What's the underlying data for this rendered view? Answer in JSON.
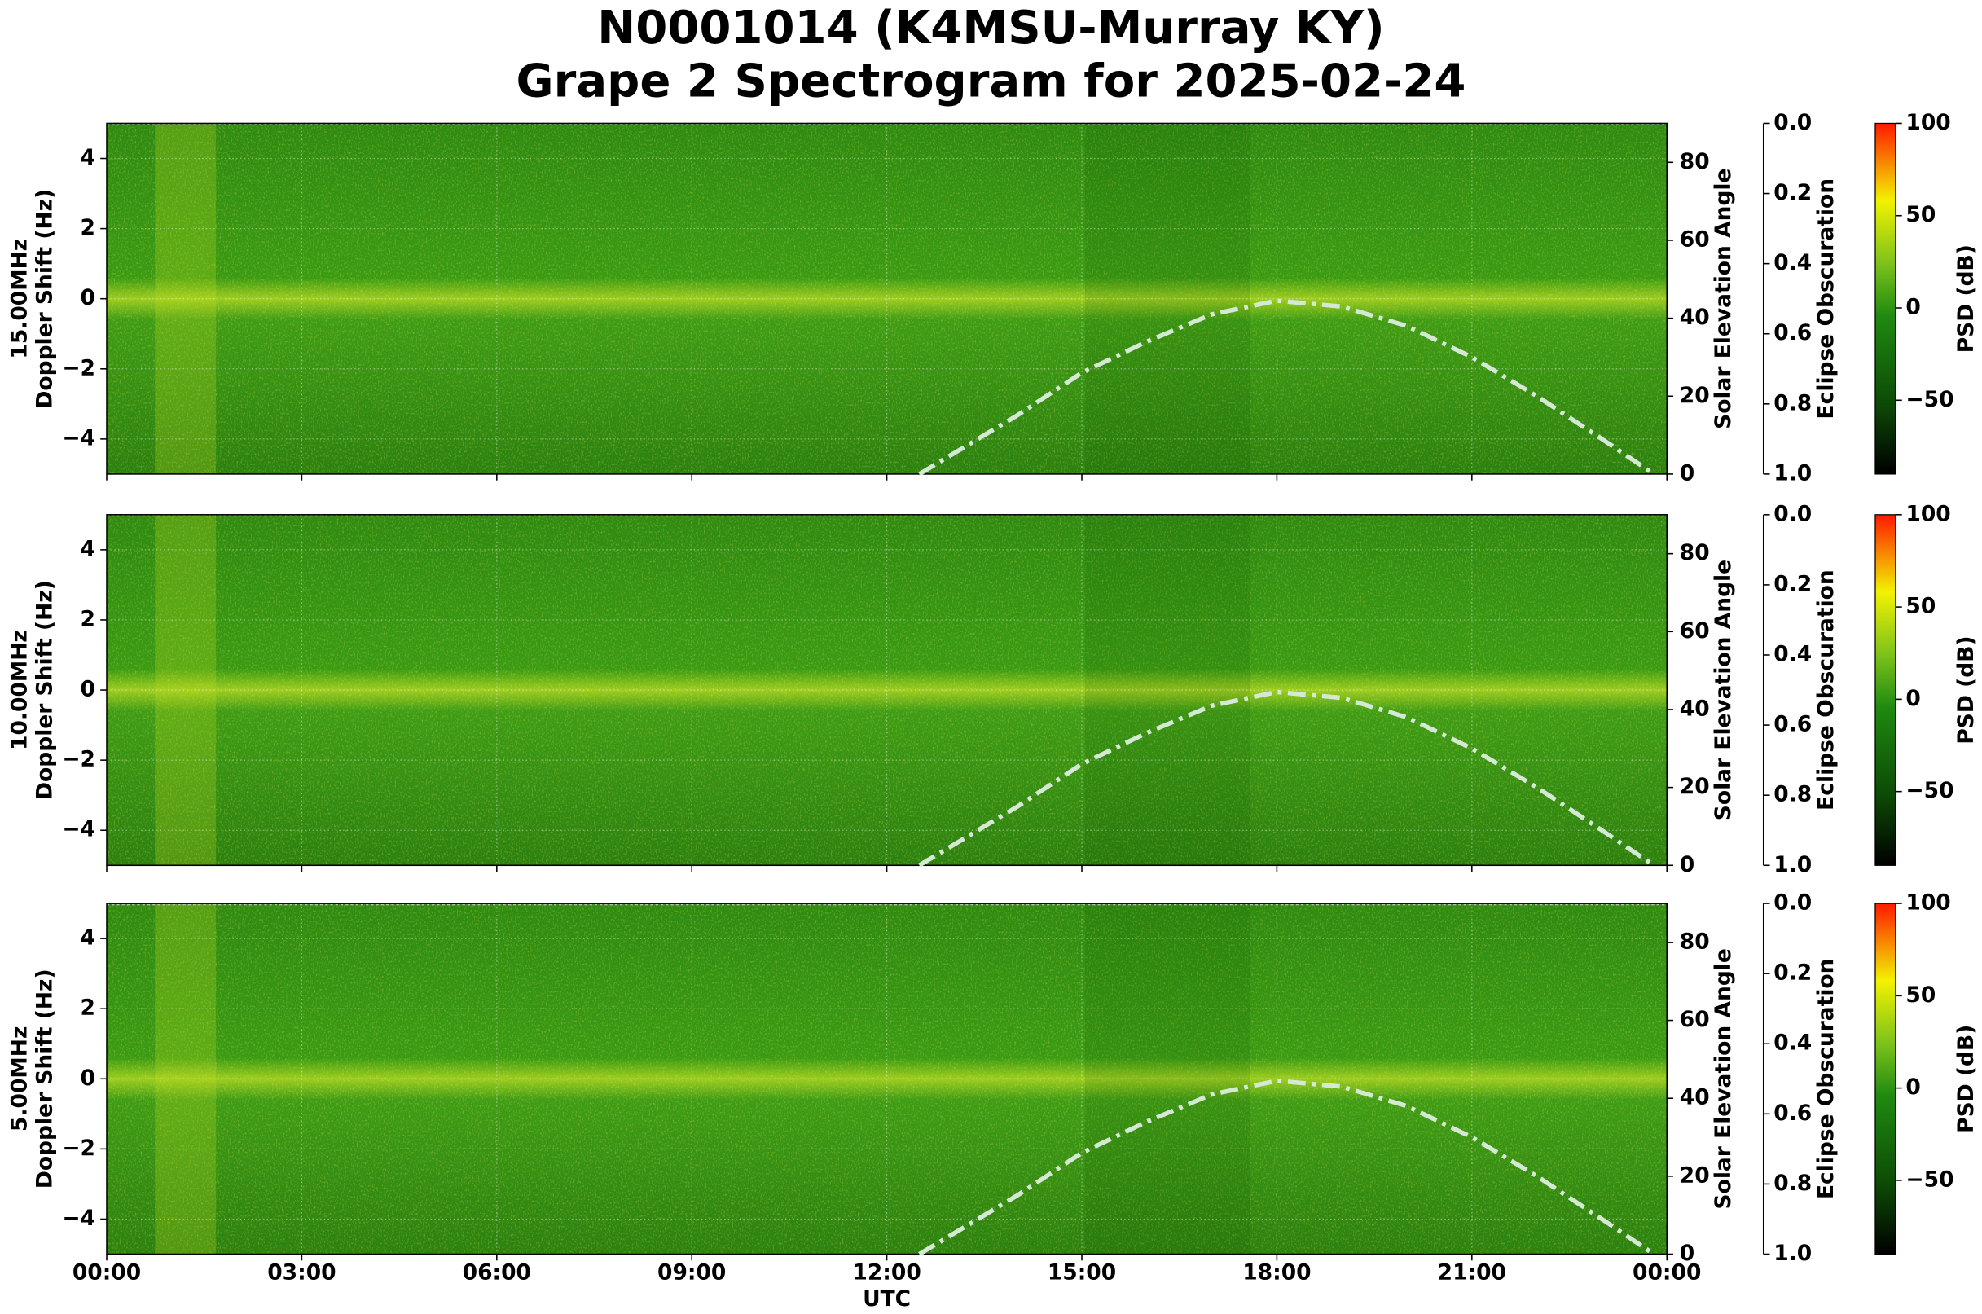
{
  "figure_title": [
    "N0001014 (K4MSU-Murray KY)",
    "Grape 2 Spectrogram for 2025-02-24"
  ],
  "chart_data": [
    {
      "type": "spectrogram",
      "ylabel": [
        "15.00MHz",
        "Doppler Shift (Hz)"
      ],
      "y2label": "Solar Elevation Angle",
      "y3label": "Eclipse Obscuration",
      "colorbar_label": "PSD (dB)",
      "xlim": [
        0,
        24
      ],
      "xticks": [
        0,
        3,
        6,
        9,
        12,
        15,
        18,
        21,
        24
      ],
      "ylim": [
        -5,
        5
      ],
      "yticks": [
        {
          "value": -4,
          "label": "−4"
        },
        {
          "value": -2,
          "label": "−2"
        },
        0,
        2,
        4
      ],
      "y2lim": [
        0,
        90
      ],
      "y2ticks": [
        0,
        20,
        40,
        60,
        80
      ],
      "y3lim": [
        1,
        0
      ],
      "y3ticks": [
        {
          "value": 0,
          "label": "0.0"
        },
        {
          "value": 0.2,
          "label": "0.2"
        },
        {
          "value": 0.4,
          "label": "0.4"
        },
        {
          "value": 0.6,
          "label": "0.6"
        },
        {
          "value": 0.8,
          "label": "0.8"
        },
        {
          "value": 1,
          "label": "1.0"
        }
      ],
      "clim": [
        -90,
        100
      ],
      "cticks": [
        {
          "value": -50,
          "label": "−50"
        },
        0,
        50,
        100
      ],
      "series": [
        {
          "name": "Solar Elevation",
          "axis": "y2",
          "color": "#d4e8d4",
          "x": [
            12.5,
            13,
            14,
            15,
            16,
            17,
            18,
            19,
            20,
            21,
            22,
            23,
            23.8
          ],
          "values": [
            0,
            5,
            15,
            26,
            34,
            41,
            44.5,
            43,
            38,
            30,
            20,
            9,
            0
          ]
        }
      ]
    },
    {
      "type": "spectrogram",
      "ylabel": [
        "10.00MHz",
        "Doppler Shift (Hz)"
      ],
      "y2label": "Solar Elevation Angle",
      "y3label": "Eclipse Obscuration",
      "colorbar_label": "PSD (dB)",
      "xlim": [
        0,
        24
      ],
      "xticks": [
        0,
        3,
        6,
        9,
        12,
        15,
        18,
        21,
        24
      ],
      "ylim": [
        -5,
        5
      ],
      "yticks": [
        {
          "value": -4,
          "label": "−4"
        },
        {
          "value": -2,
          "label": "−2"
        },
        0,
        2,
        4
      ],
      "y2lim": [
        0,
        90
      ],
      "y2ticks": [
        0,
        20,
        40,
        60,
        80
      ],
      "y3lim": [
        1,
        0
      ],
      "y3ticks": [
        {
          "value": 0,
          "label": "0.0"
        },
        {
          "value": 0.2,
          "label": "0.2"
        },
        {
          "value": 0.4,
          "label": "0.4"
        },
        {
          "value": 0.6,
          "label": "0.6"
        },
        {
          "value": 0.8,
          "label": "0.8"
        },
        {
          "value": 1,
          "label": "1.0"
        }
      ],
      "clim": [
        -90,
        100
      ],
      "cticks": [
        {
          "value": -50,
          "label": "−50"
        },
        0,
        50,
        100
      ],
      "series": [
        {
          "name": "Solar Elevation",
          "axis": "y2",
          "color": "#d4e8d4",
          "x": [
            12.5,
            13,
            14,
            15,
            16,
            17,
            18,
            19,
            20,
            21,
            22,
            23,
            23.8
          ],
          "values": [
            0,
            5,
            15,
            26,
            34,
            41,
            44.5,
            43,
            38,
            30,
            20,
            9,
            0
          ]
        }
      ]
    },
    {
      "type": "spectrogram",
      "ylabel": [
        "5.00MHz",
        "Doppler Shift (Hz)"
      ],
      "y2label": "Solar Elevation Angle",
      "y3label": "Eclipse Obscuration",
      "colorbar_label": "PSD (dB)",
      "xlabel": "UTC",
      "xlim": [
        0,
        24
      ],
      "xticks": [
        {
          "value": 0,
          "label": "00:00"
        },
        {
          "value": 3,
          "label": "03:00"
        },
        {
          "value": 6,
          "label": "06:00"
        },
        {
          "value": 9,
          "label": "09:00"
        },
        {
          "value": 12,
          "label": "12:00"
        },
        {
          "value": 15,
          "label": "15:00"
        },
        {
          "value": 18,
          "label": "18:00"
        },
        {
          "value": 21,
          "label": "21:00"
        },
        {
          "value": 24,
          "label": "00:00"
        }
      ],
      "ylim": [
        -5,
        5
      ],
      "yticks": [
        {
          "value": -4,
          "label": "−4"
        },
        {
          "value": -2,
          "label": "−2"
        },
        0,
        2,
        4
      ],
      "y2lim": [
        0,
        90
      ],
      "y2ticks": [
        0,
        20,
        40,
        60,
        80
      ],
      "y3lim": [
        1,
        0
      ],
      "y3ticks": [
        {
          "value": 0,
          "label": "0.0"
        },
        {
          "value": 0.2,
          "label": "0.2"
        },
        {
          "value": 0.4,
          "label": "0.4"
        },
        {
          "value": 0.6,
          "label": "0.6"
        },
        {
          "value": 0.8,
          "label": "0.8"
        },
        {
          "value": 1,
          "label": "1.0"
        }
      ],
      "clim": [
        -90,
        100
      ],
      "cticks": [
        {
          "value": -50,
          "label": "−50"
        },
        0,
        50,
        100
      ],
      "series": [
        {
          "name": "Solar Elevation",
          "axis": "y2",
          "color": "#d4e8d4",
          "x": [
            12.5,
            13,
            14,
            15,
            16,
            17,
            18,
            19,
            20,
            21,
            22,
            23,
            23.8
          ],
          "values": [
            0,
            5,
            15,
            26,
            34,
            41,
            44.5,
            43,
            38,
            30,
            20,
            9,
            0
          ]
        }
      ]
    }
  ]
}
